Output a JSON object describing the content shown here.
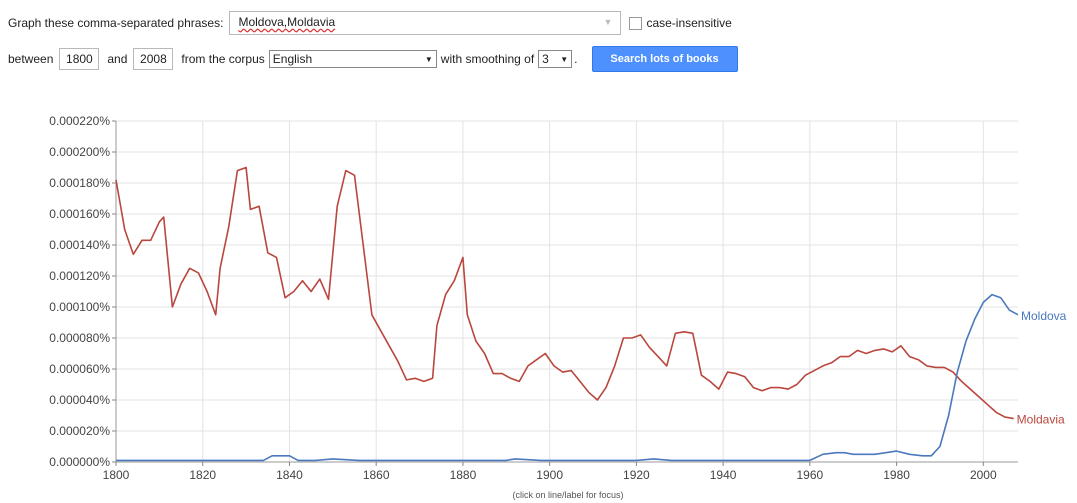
{
  "controls": {
    "phrases_label": "Graph these comma-separated phrases:",
    "phrases_value": "Moldova,Moldavia",
    "case_label": "case-insensitive",
    "between_label": "between",
    "start_year": "1800",
    "and_label": "and",
    "end_year": "2008",
    "corpus_label": "from the corpus",
    "corpus_value": "English",
    "smoothing_label": "with smoothing of",
    "smoothing_value": "3",
    "search_button": "Search lots of books"
  },
  "chart_data": {
    "type": "line",
    "title": "",
    "xlabel": "",
    "ylabel": "",
    "xlim": [
      1800,
      2008
    ],
    "ylim": [
      0,
      0.00022
    ],
    "grid": true,
    "yticks": [
      "0.000000%",
      "0.000020%",
      "0.000040%",
      "0.000060%",
      "0.000080%",
      "0.000100%",
      "0.000120%",
      "0.000140%",
      "0.000160%",
      "0.000180%",
      "0.000200%",
      "0.000220%"
    ],
    "xticks": [
      "1800",
      "1820",
      "1840",
      "1860",
      "1880",
      "1900",
      "1920",
      "1940",
      "1960",
      "1980",
      "2000"
    ],
    "footnote": "(click on line/label for focus)",
    "series": [
      {
        "name": "Moldavia",
        "color": "#b9473e",
        "x": [
          1800,
          1802,
          1804,
          1806,
          1808,
          1810,
          1811,
          1813,
          1815,
          1817,
          1819,
          1821,
          1823,
          1824,
          1826,
          1828,
          1830,
          1831,
          1833,
          1835,
          1837,
          1839,
          1841,
          1843,
          1845,
          1847,
          1849,
          1851,
          1853,
          1855,
          1857,
          1859,
          1861,
          1863,
          1865,
          1867,
          1869,
          1871,
          1873,
          1874,
          1876,
          1878,
          1880,
          1881,
          1883,
          1885,
          1887,
          1889,
          1891,
          1893,
          1895,
          1897,
          1899,
          1901,
          1903,
          1905,
          1907,
          1909,
          1911,
          1913,
          1915,
          1917,
          1919,
          1921,
          1923,
          1925,
          1927,
          1929,
          1931,
          1933,
          1935,
          1937,
          1939,
          1941,
          1943,
          1945,
          1947,
          1949,
          1951,
          1953,
          1955,
          1957,
          1959,
          1961,
          1963,
          1965,
          1967,
          1969,
          1971,
          1973,
          1975,
          1977,
          1979,
          1981,
          1983,
          1985,
          1987,
          1989,
          1991,
          1993,
          1995,
          1997,
          1999,
          2001,
          2003,
          2005,
          2007
        ],
        "y": [
          0.000182,
          0.00015,
          0.000134,
          0.000143,
          0.000143,
          0.000155,
          0.000158,
          0.0001,
          0.000115,
          0.000125,
          0.000122,
          0.00011,
          9.5e-05,
          0.000125,
          0.000152,
          0.000188,
          0.00019,
          0.000163,
          0.000165,
          0.000135,
          0.000132,
          0.000106,
          0.00011,
          0.000117,
          0.00011,
          0.000118,
          0.000105,
          0.000165,
          0.000188,
          0.000185,
          0.00014,
          9.5e-05,
          8.5e-05,
          7.5e-05,
          6.5e-05,
          5.3e-05,
          5.4e-05,
          5.2e-05,
          5.4e-05,
          8.8e-05,
          0.000108,
          0.000117,
          0.000132,
          9.5e-05,
          7.8e-05,
          7e-05,
          5.7e-05,
          5.7e-05,
          5.4e-05,
          5.2e-05,
          6.2e-05,
          6.6e-05,
          7e-05,
          6.2e-05,
          5.8e-05,
          5.9e-05,
          5.2e-05,
          4.5e-05,
          4e-05,
          4.8e-05,
          6.2e-05,
          8e-05,
          8e-05,
          8.2e-05,
          7.4e-05,
          6.8e-05,
          6.2e-05,
          8.3e-05,
          8.4e-05,
          8.3e-05,
          5.6e-05,
          5.2e-05,
          4.7e-05,
          5.8e-05,
          5.7e-05,
          5.5e-05,
          4.8e-05,
          4.6e-05,
          4.8e-05,
          4.8e-05,
          4.7e-05,
          5e-05,
          5.6e-05,
          5.9e-05,
          6.2e-05,
          6.4e-05,
          6.8e-05,
          6.8e-05,
          7.2e-05,
          7e-05,
          7.2e-05,
          7.3e-05,
          7.1e-05,
          7.5e-05,
          6.8e-05,
          6.6e-05,
          6.2e-05,
          6.1e-05,
          6.1e-05,
          5.8e-05,
          5.2e-05,
          4.7e-05,
          4.2e-05,
          3.7e-05,
          3.2e-05,
          2.9e-05,
          2.8e-05
        ]
      },
      {
        "name": "Moldova",
        "color": "#4a79bd",
        "x": [
          1800,
          1834,
          1836,
          1838,
          1840,
          1842,
          1846,
          1850,
          1856,
          1860,
          1880,
          1890,
          1892,
          1898,
          1900,
          1920,
          1924,
          1928,
          1932,
          1940,
          1950,
          1960,
          1963,
          1966,
          1968,
          1970,
          1975,
          1980,
          1983,
          1986,
          1988,
          1990,
          1992,
          1994,
          1996,
          1998,
          2000,
          2002,
          2004,
          2006,
          2008
        ],
        "y": [
          1e-06,
          1e-06,
          4e-06,
          4e-06,
          4e-06,
          1e-06,
          1e-06,
          2e-06,
          1e-06,
          1e-06,
          1e-06,
          1e-06,
          2e-06,
          1e-06,
          1e-06,
          1e-06,
          2e-06,
          1e-06,
          1e-06,
          1e-06,
          1e-06,
          1e-06,
          5e-06,
          6e-06,
          6e-06,
          5e-06,
          5e-06,
          7e-06,
          5e-06,
          4e-06,
          4e-06,
          1e-05,
          3e-05,
          5.8e-05,
          7.8e-05,
          9.2e-05,
          0.000103,
          0.000108,
          0.000106,
          9.8e-05,
          9.5e-05
        ]
      }
    ]
  }
}
